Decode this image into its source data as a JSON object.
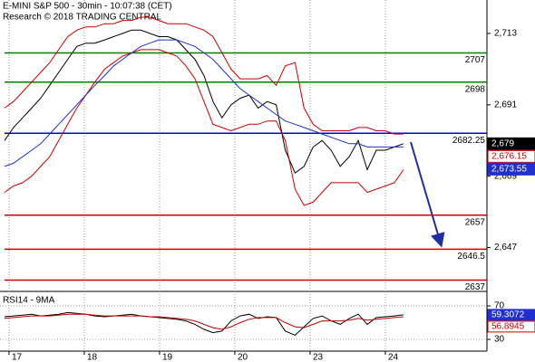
{
  "chart_data": [
    {
      "type": "line",
      "title": "E-MINI S&P 500 - 30min - 10:07:38 (CET)",
      "subtitle": "Research © 2018 TRADING CENTRAL",
      "x": [
        -0.06,
        0.06,
        0.18,
        0.3,
        0.42,
        0.54,
        0.66,
        0.78,
        0.9,
        1.02,
        1.14,
        1.27,
        1.39,
        1.51,
        1.63,
        1.75,
        1.87,
        1.99,
        2.11,
        2.23,
        2.35,
        2.47,
        2.59,
        2.71,
        2.83,
        2.95,
        3.07,
        3.19,
        3.31,
        3.43,
        3.55,
        3.67,
        3.8,
        3.92,
        4.04,
        4.16,
        4.28,
        4.4,
        4.52,
        4.64,
        4.76,
        4.88,
        5.0,
        5.12,
        5.24
      ],
      "series": [
        {
          "color": "#000000",
          "values": [
            2680,
            2684,
            2687,
            2690,
            2693,
            2697,
            2701,
            2705,
            2709,
            2710,
            2710,
            2711,
            2712,
            2713,
            2714,
            2714,
            2713,
            2712,
            2712,
            2711,
            2708,
            2705,
            2700,
            2692,
            2687,
            2691,
            2693,
            2694,
            2690,
            2692,
            2691,
            2677,
            2670,
            2672,
            2678,
            2680,
            2677,
            2672,
            2675,
            2680,
            2671,
            2677,
            2677,
            2678,
            2679
          ]
        },
        {
          "color": "#cc0000",
          "values": [
            2690,
            2692,
            2695,
            2698,
            2701,
            2704,
            2708,
            2712,
            2714,
            2715,
            2715,
            2716,
            2716,
            2717,
            2717,
            2718,
            2718,
            2717,
            2716,
            2716,
            2716,
            2715,
            2714,
            2712,
            2707,
            2702,
            2699,
            2699,
            2699,
            2700,
            2697,
            2703,
            2704,
            2690,
            2685,
            2683,
            2683,
            2683,
            2683,
            2684,
            2684,
            2683,
            2683,
            2682,
            2682
          ]
        },
        {
          "color": "#cc0000",
          "values": [
            2664,
            2666,
            2667,
            2669,
            2672,
            2675,
            2680,
            2685,
            2690,
            2694,
            2698,
            2702,
            2704,
            2706,
            2707,
            2708,
            2708,
            2708,
            2707,
            2706,
            2703,
            2699,
            2692,
            2685,
            2684,
            2683,
            2684,
            2685,
            2685,
            2686,
            2686,
            2680,
            2665,
            2660,
            2661,
            2664,
            2667,
            2667,
            2667,
            2667,
            2664,
            2665,
            2666,
            2667,
            2671
          ]
        },
        {
          "color": "#1f2fd0",
          "values": [
            2672,
            2673,
            2675,
            2677,
            2679,
            2682,
            2685,
            2688,
            2691,
            2694,
            2697,
            2700,
            2703,
            2705,
            2707,
            2709,
            2710,
            2711,
            2711,
            2711,
            2710,
            2709,
            2707,
            2705,
            2702,
            2699,
            2696,
            2694,
            2692,
            2690,
            2688,
            2686,
            2685,
            2684,
            2683,
            2682,
            2681,
            2680,
            2679,
            2679,
            2678,
            2678,
            2678,
            2678,
            2678
          ]
        }
      ],
      "levels": [
        {
          "value": 2707,
          "color": "#008000"
        },
        {
          "value": 2698,
          "color": "#008000"
        },
        {
          "value": 2682.25,
          "color": "#0000cc"
        },
        {
          "value": 2657,
          "color": "#cc0000"
        },
        {
          "value": 2646.5,
          "color": "#cc0000"
        },
        {
          "value": 2637,
          "color": "#cc0000"
        }
      ],
      "price_tags": [
        {
          "value": 2679,
          "label": "2,679",
          "color": "#000000"
        },
        {
          "value": 2676.15,
          "label": "2,676.15",
          "color": "#cc0000"
        },
        {
          "value": 2673.55,
          "label": "2,673.55",
          "color": "#1f2fd0"
        }
      ],
      "xlim": [
        -0.12,
        6.35
      ],
      "xticks": [
        {
          "value": 0,
          "label": "17"
        },
        {
          "value": 1,
          "label": "18"
        },
        {
          "value": 2,
          "label": "19"
        },
        {
          "value": 3,
          "label": "20"
        },
        {
          "value": 4,
          "label": "23"
        },
        {
          "value": 5,
          "label": "24"
        }
      ],
      "ylim": [
        2633.5,
        2723.3
      ],
      "yticks": [
        {
          "value": 2713,
          "label": "2,713"
        },
        {
          "value": 2691,
          "label": "2,691"
        },
        {
          "value": 2669,
          "label": "2,669"
        },
        {
          "value": 2647,
          "label": "2,647"
        }
      ],
      "grid": true
    },
    {
      "type": "line",
      "title": "RSI14 - 9MA",
      "series": [
        {
          "color": "#000000",
          "tag_color": "#1f2fd0",
          "values": [
            57,
            58,
            59,
            60,
            58,
            59,
            60,
            62,
            61,
            60,
            58,
            57,
            58,
            59,
            60,
            58,
            57,
            56,
            55,
            54,
            52,
            48,
            42,
            38,
            40,
            52,
            58,
            60,
            55,
            57,
            56,
            40,
            35,
            45,
            55,
            58,
            52,
            48,
            55,
            60,
            48,
            56,
            57,
            58,
            59.3072
          ]
        },
        {
          "color": "#cc0000",
          "tag_color": "#cc0000",
          "values": [
            55,
            56,
            57,
            58,
            58,
            58,
            59,
            60,
            60,
            60,
            59,
            58,
            58,
            58,
            58,
            58,
            57,
            57,
            56,
            55,
            54,
            52,
            48,
            44,
            42,
            45,
            50,
            54,
            56,
            56,
            56,
            50,
            45,
            44,
            48,
            52,
            52,
            52,
            53,
            55,
            53,
            54,
            55,
            56,
            56.8945
          ]
        }
      ],
      "ylim": [
        16,
        84
      ],
      "yticks": [
        30,
        70
      ],
      "grid": true
    }
  ]
}
